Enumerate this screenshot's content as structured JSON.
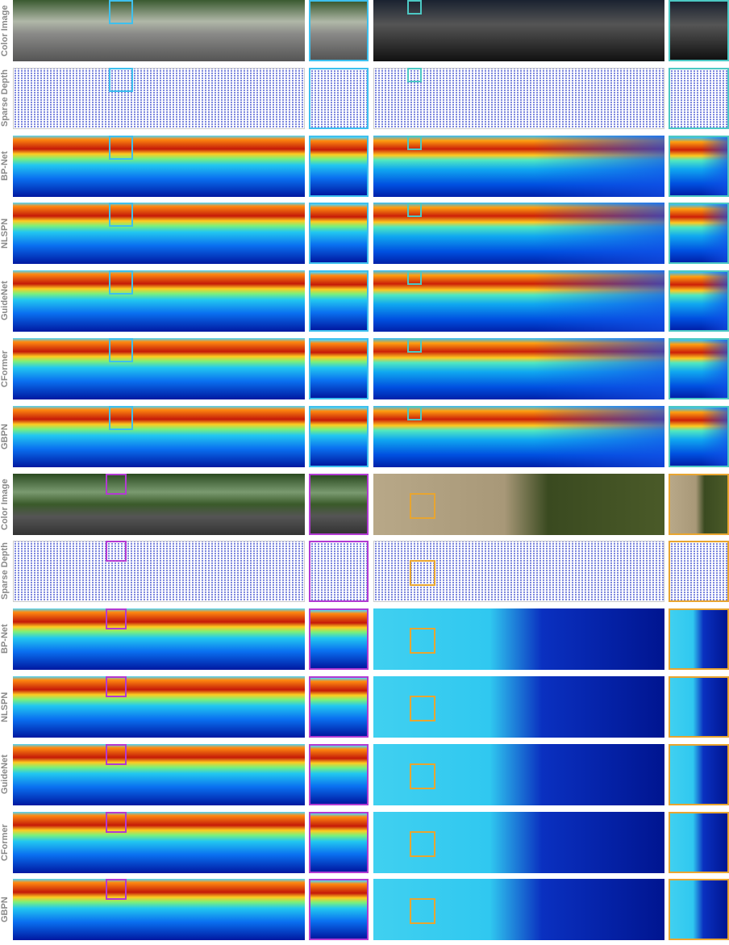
{
  "rows": [
    "Color Image",
    "Sparse Depth",
    "BP-Net",
    "NLSPN",
    "GuideNet",
    "CFormer",
    "GBPN",
    "Color Image",
    "Sparse Depth",
    "BP-Net",
    "NLSPN",
    "GuideNet",
    "CFormer",
    "GBPN"
  ]
}
